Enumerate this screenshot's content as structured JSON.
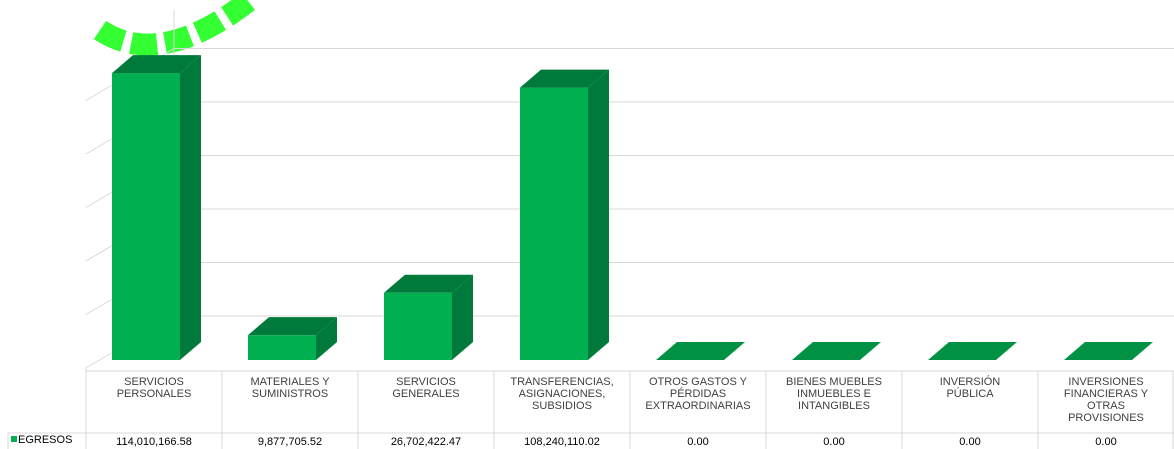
{
  "chart_data": {
    "type": "bar",
    "style": "3d-column-with-data-table",
    "title": "",
    "xlabel": "",
    "ylabel": "",
    "categories": [
      [
        "SERVICIOS",
        "PERSONALES"
      ],
      [
        "MATERIALES Y",
        "SUMINISTROS"
      ],
      [
        "SERVICIOS",
        "GENERALES"
      ],
      [
        "TRANSFERENCIAS,",
        "ASIGNACIONES,",
        "SUBSIDIOS"
      ],
      [
        "OTROS GASTOS Y",
        "PÉRDIDAS",
        "EXTRAORDINARIAS"
      ],
      [
        "BIENES MUEBLES",
        "INMUEBLES E",
        "INTANGIBLES"
      ],
      [
        "INVERSIÓN",
        "PÚBLICA"
      ],
      [
        "INVERSIONES",
        "FINANCIERAS Y",
        "OTRAS",
        "PROVISIONES"
      ]
    ],
    "series": [
      {
        "name": "EGRESOS",
        "values": [
          114010166.58,
          9877705.52,
          26702422.47,
          108240110.02,
          0,
          0,
          0,
          0
        ],
        "labels": [
          "114,010,166.58",
          "9,877,705.52",
          "26,702,422.47",
          "108,240,110.02",
          "0.00",
          "0.00",
          "0.00",
          "0.00"
        ]
      }
    ],
    "ylim": [
      0,
      120000000
    ],
    "grid": true,
    "legend": "data-table-left",
    "colors": {
      "front": "#00b050",
      "side": "#007a3a",
      "top": "#009144",
      "grid": "#d9d9d9",
      "watermark": "#33ff33"
    }
  }
}
